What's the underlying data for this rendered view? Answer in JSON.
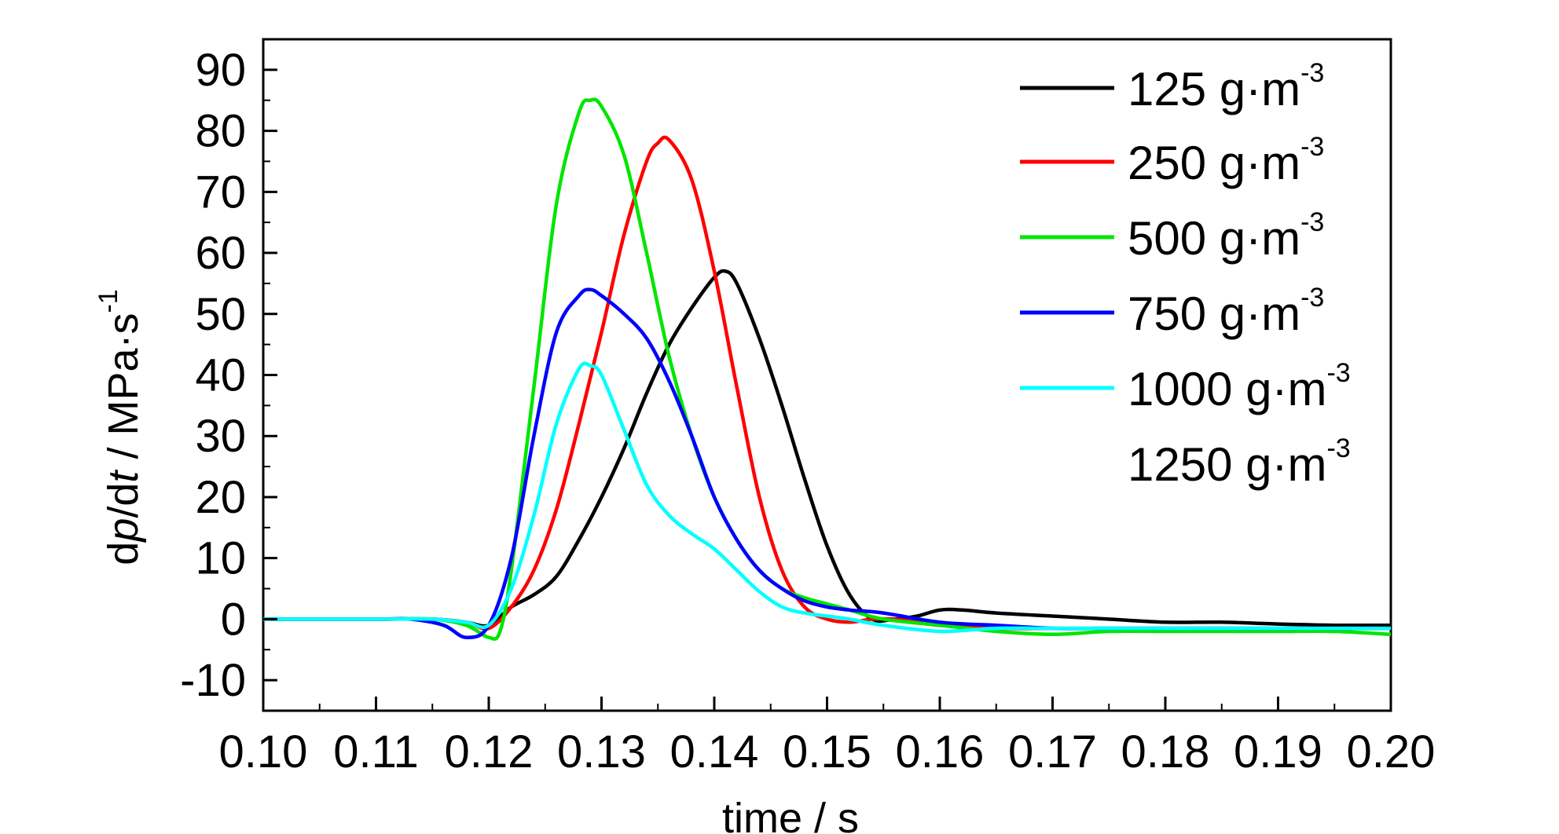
{
  "chart_data": {
    "type": "line",
    "title": "",
    "xlabel": "time / s",
    "ylabel": {
      "part1": "d",
      "p": "p",
      "part2": "/d",
      "t": "t",
      "part3": " / MPa·s",
      "sup": "-1"
    },
    "xlim": [
      0.1,
      0.2
    ],
    "ylim": [
      -15,
      95
    ],
    "xticks": [
      "0.10",
      "0.11",
      "0.12",
      "0.13",
      "0.14",
      "0.15",
      "0.16",
      "0.17",
      "0.18",
      "0.19",
      "0.20"
    ],
    "yticks": [
      "-10",
      "0",
      "10",
      "20",
      "30",
      "40",
      "50",
      "60",
      "70",
      "80",
      "90"
    ],
    "legend_position": "top-right",
    "series": [
      {
        "name": "125 g·m",
        "sup": "-3",
        "color": "#000000",
        "x": [
          0.1,
          0.11,
          0.115,
          0.118,
          0.12,
          0.122,
          0.124,
          0.126,
          0.128,
          0.13,
          0.132,
          0.134,
          0.136,
          0.138,
          0.14,
          0.141,
          0.142,
          0.144,
          0.146,
          0.148,
          0.15,
          0.152,
          0.154,
          0.156,
          0.158,
          0.16,
          0.162,
          0.165,
          0.17,
          0.175,
          0.18,
          0.185,
          0.19,
          0.195,
          0.2
        ],
        "y": [
          0,
          0,
          0,
          -0.5,
          -1,
          2,
          4,
          7,
          13,
          20,
          28,
          37,
          45,
          51,
          56,
          57,
          55,
          46,
          35,
          23,
          12,
          4,
          0,
          0,
          0.5,
          1.5,
          1.5,
          1,
          0.5,
          0,
          -0.5,
          -0.5,
          -0.8,
          -1,
          -1
        ]
      },
      {
        "name": "250 g·m",
        "sup": "-3",
        "color": "#ff0000",
        "x": [
          0.1,
          0.11,
          0.115,
          0.118,
          0.12,
          0.122,
          0.124,
          0.126,
          0.128,
          0.13,
          0.132,
          0.134,
          0.135,
          0.136,
          0.138,
          0.14,
          0.142,
          0.144,
          0.146,
          0.148,
          0.15,
          0.152,
          0.154,
          0.156,
          0.158,
          0.16,
          0.165,
          0.17,
          0.175,
          0.18,
          0.19,
          0.2
        ],
        "y": [
          0,
          0,
          0,
          -0.5,
          -1.5,
          2,
          8,
          18,
          32,
          47,
          63,
          75,
          78,
          78.5,
          72,
          57,
          38,
          20,
          8,
          2,
          0,
          -0.5,
          0,
          0,
          -0.5,
          -1,
          -1.5,
          -1.5,
          -1.5,
          -1.5,
          -1.5,
          -1.5
        ]
      },
      {
        "name": "500 g·m",
        "sup": "-3",
        "color": "#00e600",
        "x": [
          0.1,
          0.11,
          0.115,
          0.118,
          0.12,
          0.121,
          0.122,
          0.124,
          0.126,
          0.128,
          0.129,
          0.13,
          0.132,
          0.134,
          0.136,
          0.138,
          0.14,
          0.142,
          0.144,
          0.146,
          0.148,
          0.15,
          0.152,
          0.155,
          0.16,
          0.165,
          0.17,
          0.175,
          0.18,
          0.185,
          0.19,
          0.195,
          0.2
        ],
        "y": [
          0,
          0,
          0,
          -1,
          -3,
          -2,
          8,
          38,
          68,
          83,
          85,
          84,
          76,
          60,
          43,
          30,
          20,
          13,
          8,
          5,
          3.5,
          2.5,
          1.5,
          0,
          -1,
          -2,
          -2.5,
          -2,
          -2,
          -2,
          -2,
          -2,
          -2.5
        ]
      },
      {
        "name": "750 g·m",
        "sup": "-3",
        "color": "#0000ff",
        "x": [
          0.1,
          0.11,
          0.113,
          0.116,
          0.118,
          0.12,
          0.122,
          0.124,
          0.126,
          0.128,
          0.129,
          0.13,
          0.132,
          0.134,
          0.136,
          0.138,
          0.14,
          0.142,
          0.144,
          0.146,
          0.148,
          0.15,
          0.152,
          0.155,
          0.16,
          0.165,
          0.17,
          0.175,
          0.18,
          0.19,
          0.2
        ],
        "y": [
          0,
          0,
          0,
          -1,
          -3,
          -1,
          10,
          30,
          47,
          53,
          54,
          53,
          50,
          46,
          39,
          30,
          20,
          13,
          8,
          5,
          3,
          2,
          1.5,
          1,
          -0.5,
          -1,
          -1.5,
          -1.5,
          -1.5,
          -1.5,
          -1.5
        ]
      },
      {
        "name": "1000 g·m",
        "sup": "-3",
        "color": "#00ffff",
        "x": [
          0.1,
          0.11,
          0.115,
          0.118,
          0.12,
          0.122,
          0.124,
          0.126,
          0.128,
          0.129,
          0.13,
          0.132,
          0.134,
          0.136,
          0.138,
          0.14,
          0.142,
          0.144,
          0.146,
          0.148,
          0.15,
          0.152,
          0.155,
          0.16,
          0.165,
          0.17,
          0.18,
          0.19,
          0.2
        ],
        "y": [
          0,
          0,
          0,
          -0.5,
          -1,
          5,
          17,
          32,
          41,
          41.5,
          40,
          31,
          22,
          17,
          14,
          11.5,
          8,
          4.5,
          2,
          1,
          0.5,
          0,
          -1,
          -2,
          -1.5,
          -1.5,
          -1.5,
          -1.5,
          -1.5
        ]
      },
      {
        "name": "1250 g·m",
        "sup": "-3",
        "color": "#ffffff",
        "x": [],
        "y": []
      }
    ]
  }
}
